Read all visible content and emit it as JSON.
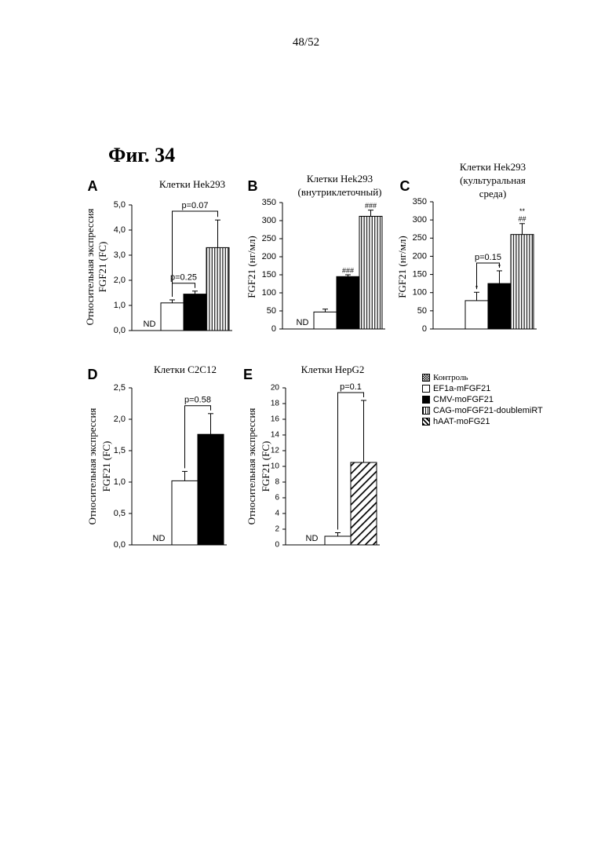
{
  "page_number": "48/52",
  "figure_title": "Фиг. 34",
  "legend": [
    {
      "label": "Контроль",
      "pattern": "dots"
    },
    {
      "label": "EF1a-mFGF21",
      "pattern": "white"
    },
    {
      "label": "CMV-moFGF21",
      "pattern": "black"
    },
    {
      "label": "CAG-moFGF21-doublemiRT",
      "pattern": "vlines"
    },
    {
      "label": "hAAT-moFG21",
      "pattern": "diag"
    }
  ],
  "colors": {
    "ink": "#000000",
    "fill_white": "#ffffff",
    "fill_black": "#000000"
  },
  "chart_data": [
    {
      "panel": "A",
      "type": "bar",
      "title": "Клетки Hek293",
      "ylabel": [
        "Относительная экспрессия",
        "FGF21 (FC)"
      ],
      "ylim": [
        0,
        5
      ],
      "yticks": [
        "0,0",
        "1,0",
        "2,0",
        "3,0",
        "4,0",
        "5,0"
      ],
      "yticks_values": [
        0,
        1,
        2,
        3,
        4,
        5
      ],
      "series": [
        {
          "pattern": "white",
          "value": 1.1,
          "error": 0.12
        },
        {
          "pattern": "black",
          "value": 1.45,
          "error": 0.12
        },
        {
          "pattern": "vlines",
          "value": 3.3,
          "error": 1.1
        }
      ],
      "nd_label": "ND",
      "annotations": [
        {
          "text": "p=0.25",
          "from": 0,
          "to": 1
        },
        {
          "text": "p=0.07",
          "from": 0,
          "to": 2
        }
      ],
      "bar_marks": []
    },
    {
      "panel": "B",
      "type": "bar",
      "title": [
        "Клетки Hek293",
        "(внутриклеточный)"
      ],
      "ylabel": [
        "FGF21 (нг/мл)"
      ],
      "ylim": [
        0,
        350
      ],
      "yticks": [
        "0",
        "50",
        "100",
        "150",
        "200",
        "250",
        "300",
        "350"
      ],
      "yticks_values": [
        0,
        50,
        100,
        150,
        200,
        250,
        300,
        350
      ],
      "series": [
        {
          "pattern": "white",
          "value": 47,
          "error": 8
        },
        {
          "pattern": "black",
          "value": 145,
          "error": 5
        },
        {
          "pattern": "vlines",
          "value": 312,
          "error": 17
        }
      ],
      "nd_label": "ND",
      "annotations": [],
      "bar_marks": [
        {
          "bar": 1,
          "text": "###"
        },
        {
          "bar": 2,
          "text": "###"
        }
      ]
    },
    {
      "panel": "C",
      "type": "bar",
      "title": [
        "Клетки Hek293",
        "(культуральная",
        "среда)"
      ],
      "ylabel": [
        "FGF21 (нг/мл)"
      ],
      "ylim": [
        0,
        350
      ],
      "yticks": [
        "0",
        "50",
        "100",
        "150",
        "200",
        "250",
        "300",
        "350"
      ],
      "yticks_values": [
        0,
        50,
        100,
        150,
        200,
        250,
        300,
        350
      ],
      "series": [
        {
          "pattern": "white",
          "value": 78,
          "error": 23
        },
        {
          "pattern": "black",
          "value": 125,
          "error": 35
        },
        {
          "pattern": "vlines",
          "value": 260,
          "error": 30
        }
      ],
      "nd_label": "",
      "annotations": [
        {
          "text": "p=0.15",
          "from": 0,
          "to": 1
        }
      ],
      "bar_marks": [
        {
          "bar": 0,
          "text": "*"
        },
        {
          "bar": 1,
          "text": "*"
        },
        {
          "bar": 2,
          "text": "##"
        },
        {
          "bar": 2,
          "text": "**"
        }
      ]
    },
    {
      "panel": "D",
      "type": "bar",
      "title": "Клетки C2C12",
      "ylabel": [
        "Относительная экспрессия",
        "FGF21 (FC)"
      ],
      "ylim": [
        0,
        2.5
      ],
      "yticks": [
        "0,0",
        "0,5",
        "1,0",
        "1,5",
        "2,0",
        "2,5"
      ],
      "yticks_values": [
        0,
        0.5,
        1.0,
        1.5,
        2.0,
        2.5
      ],
      "series": [
        {
          "pattern": "white",
          "value": 1.02,
          "error": 0.15
        },
        {
          "pattern": "black",
          "value": 1.76,
          "error": 0.33
        }
      ],
      "nd_label": "ND",
      "annotations": [
        {
          "text": "p=0.58",
          "from": 0,
          "to": 1
        }
      ],
      "bar_marks": []
    },
    {
      "panel": "E",
      "type": "bar",
      "title": "Клетки HepG2",
      "ylabel": [
        "Относительная экспрессия",
        "FGF21 (FC)"
      ],
      "ylim": [
        0,
        20
      ],
      "yticks": [
        "0",
        "2",
        "4",
        "6",
        "8",
        "10",
        "12",
        "14",
        "16",
        "18",
        "20"
      ],
      "yticks_values": [
        0,
        2,
        4,
        6,
        8,
        10,
        12,
        14,
        16,
        18,
        20
      ],
      "series": [
        {
          "pattern": "white",
          "value": 1.1,
          "error": 0.45
        },
        {
          "pattern": "diag",
          "value": 10.5,
          "error": 7.9
        }
      ],
      "nd_label": "ND",
      "annotations": [
        {
          "text": "p=0.1",
          "from": 0,
          "to": 1
        }
      ],
      "bar_marks": []
    }
  ]
}
